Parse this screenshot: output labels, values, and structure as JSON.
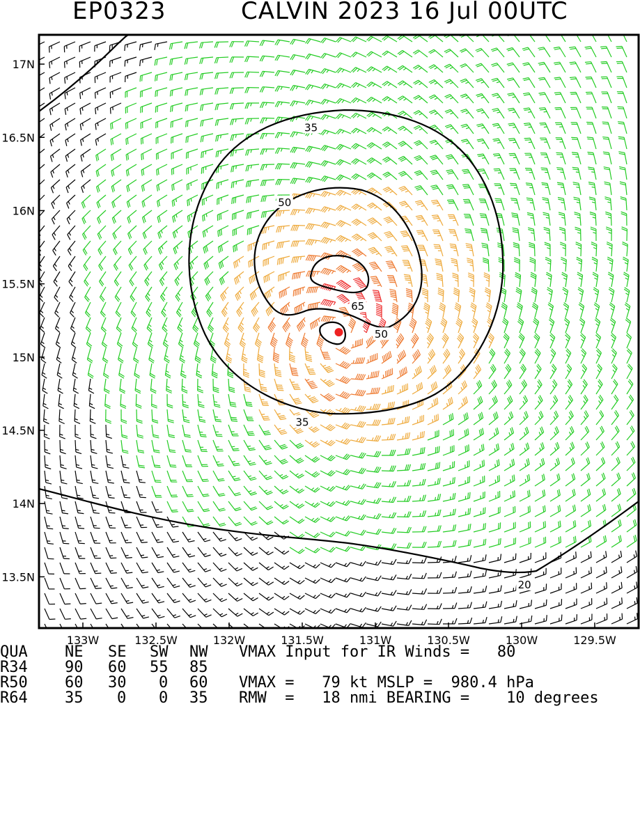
{
  "title": {
    "storm_id": "EP0323",
    "storm_info": "CALVIN 2023 16 Jul 00UTC"
  },
  "map": {
    "lon_range": [
      -133.3,
      -129.2
    ],
    "lat_range": [
      13.15,
      17.2
    ],
    "center": {
      "lat": 15.17,
      "lon": -131.25
    },
    "x_ticks": [
      {
        "value": -133.0,
        "label": "133W"
      },
      {
        "value": -132.5,
        "label": "132.5W"
      },
      {
        "value": -132.0,
        "label": "132W"
      },
      {
        "value": -131.5,
        "label": "131.5W"
      },
      {
        "value": -131.0,
        "label": "131W"
      },
      {
        "value": -130.5,
        "label": "130.5W"
      },
      {
        "value": -130.0,
        "label": "130W"
      },
      {
        "value": -129.5,
        "label": "129.5W"
      }
    ],
    "y_ticks": [
      {
        "value": 17.0,
        "label": "17N"
      },
      {
        "value": 16.5,
        "label": "16.5N"
      },
      {
        "value": 16.0,
        "label": "16N"
      },
      {
        "value": 15.5,
        "label": "15.5N"
      },
      {
        "value": 15.0,
        "label": "15N"
      },
      {
        "value": 14.5,
        "label": "14.5N"
      },
      {
        "value": 14.0,
        "label": "14N"
      },
      {
        "value": 13.5,
        "label": "13.5N"
      }
    ],
    "contour_labels": [
      {
        "text": "35",
        "lat": 16.57,
        "lon": -131.44
      },
      {
        "text": "50",
        "lat": 16.06,
        "lon": -131.62
      },
      {
        "text": "65",
        "lat": 15.35,
        "lon": -131.12
      },
      {
        "text": "50",
        "lat": 15.16,
        "lon": -130.96
      },
      {
        "text": "35",
        "lat": 14.56,
        "lon": -131.5
      },
      {
        "text": "20",
        "lat": 13.45,
        "lon": -129.98
      }
    ],
    "wind_colors": {
      "below_20": "#000000",
      "20_to_35": "#22cc22",
      "35_to_50": "#eea93a",
      "50_to_65": "#ee7a30",
      "above_65": "#ee3030"
    },
    "center_marker_color": "#ee2222"
  },
  "footer": {
    "rows": [
      {
        "c0": "QUA",
        "c1": "NE",
        "c2": "SE",
        "c3": "SW",
        "c4": "NW",
        "tail": "VMAX Input for IR Winds =   80"
      },
      {
        "c0": "R34",
        "c1": "90",
        "c2": "60",
        "c3": "55",
        "c4": "85",
        "tail": ""
      },
      {
        "c0": "R50",
        "c1": "60",
        "c2": "30",
        "c3": "0",
        "c4": "60",
        "tail": "VMAX =   79 kt MSLP =  980.4 hPa"
      },
      {
        "c0": "R64",
        "c1": "35",
        "c2": "0",
        "c3": "0",
        "c4": "35",
        "tail": "RMW  =   18 nmi BEARING =    10 degrees"
      }
    ]
  }
}
